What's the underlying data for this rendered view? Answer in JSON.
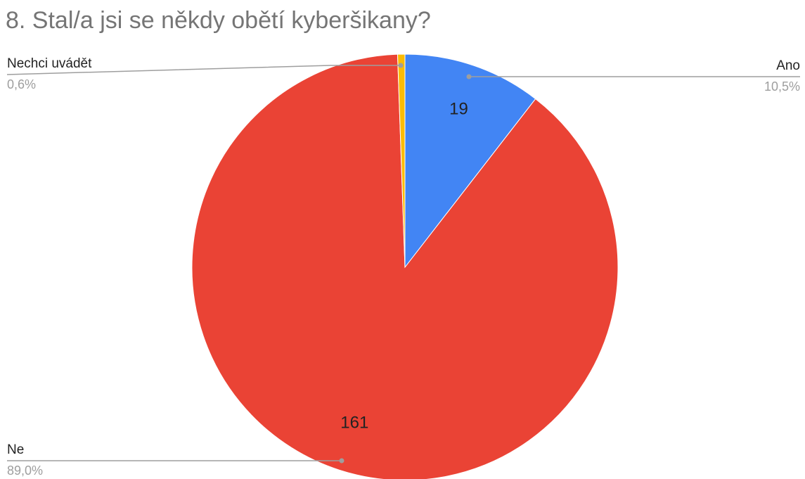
{
  "chart_data": {
    "type": "pie",
    "title": "8. Stal/a jsi se někdy obětí kyberšikany?",
    "slices": [
      {
        "label": "Ano",
        "value": 19,
        "percent": "10,5%",
        "color": "#4285f4",
        "show_value": true
      },
      {
        "label": "Ne",
        "value": 161,
        "percent": "89,0%",
        "color": "#ea4335",
        "show_value": true
      },
      {
        "label": "Nechci uvádět",
        "value": 1,
        "percent": "0,6%",
        "color": "#fbbc04",
        "show_value": false
      }
    ]
  }
}
